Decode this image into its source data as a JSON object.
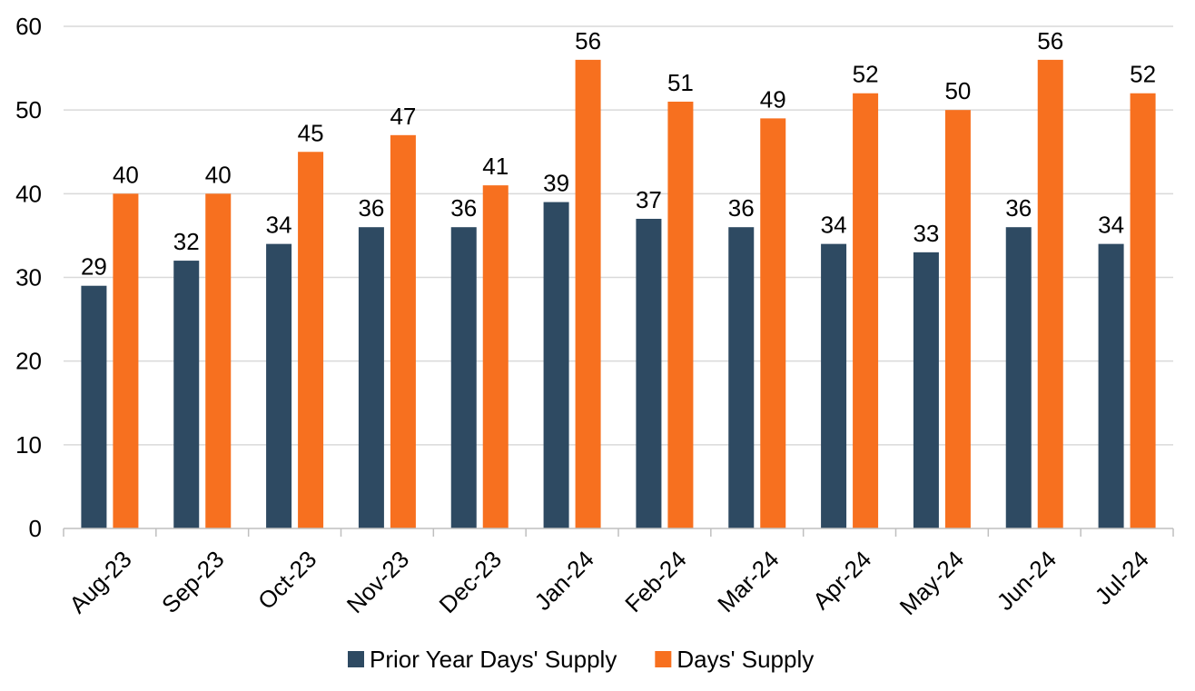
{
  "chart_data": {
    "type": "bar",
    "categories": [
      "Aug-23",
      "Sep-23",
      "Oct-23",
      "Nov-23",
      "Dec-23",
      "Jan-24",
      "Feb-24",
      "Mar-24",
      "Apr-24",
      "May-24",
      "Jun-24",
      "Jul-24"
    ],
    "series": [
      {
        "name": "Prior Year Days' Supply",
        "values": [
          29,
          32,
          34,
          36,
          36,
          39,
          37,
          36,
          34,
          33,
          36,
          34
        ],
        "color": "#2e4a62"
      },
      {
        "name": "Days' Supply",
        "values": [
          40,
          40,
          45,
          47,
          41,
          56,
          51,
          49,
          52,
          50,
          56,
          52
        ],
        "color": "#f7701f"
      }
    ],
    "ylim": [
      0,
      60
    ],
    "yticks": [
      0,
      10,
      20,
      30,
      40,
      50,
      60
    ],
    "grid": true,
    "legend_position": "bottom"
  }
}
